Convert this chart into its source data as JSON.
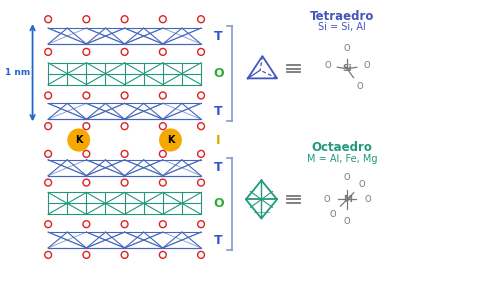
{
  "background_color": "#ffffff",
  "nm_label": "1 nm",
  "layer_labels": [
    "T",
    "O",
    "T",
    "I",
    "T",
    "O",
    "T"
  ],
  "layer_label_colors": [
    "#3355cc",
    "#33aa33",
    "#3355cc",
    "#ddaa00",
    "#3355cc",
    "#33aa33",
    "#3355cc"
  ],
  "tetraedro_title": "Tetraedro",
  "tetraedro_formula": "Si = Si, Al",
  "octaedro_title": "Octaedro",
  "octaedro_formula": "M = Al, Fe, Mg",
  "tetraedro_color": "#4455bb",
  "octaedro_color": "#22997a",
  "arrow_color": "#2266cc",
  "red_color": "#dd2222",
  "K_color": "#f5a800",
  "blue_grid": "#4466bb",
  "green_grid": "#22997a",
  "bracket_color": "#8899cc",
  "mol_color": "#777777"
}
